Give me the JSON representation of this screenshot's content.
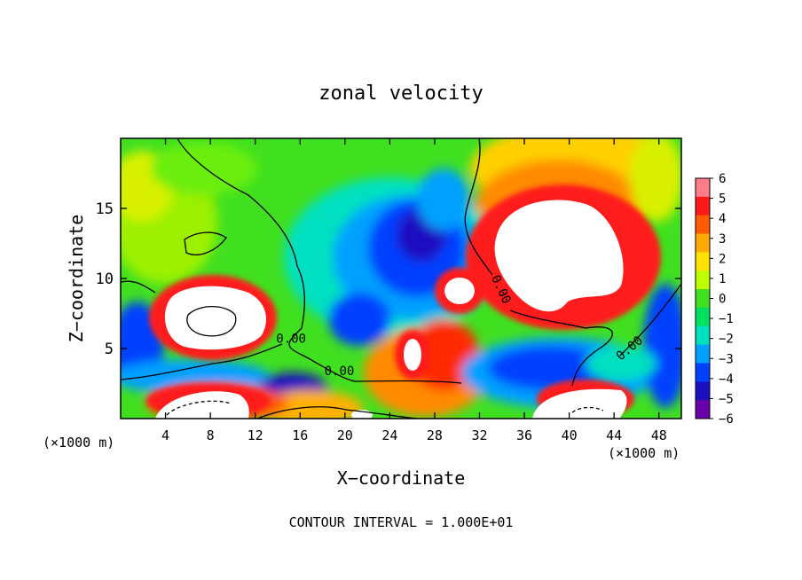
{
  "chart_data": {
    "type": "heatmap",
    "title": "zonal velocity",
    "xlabel": "X−coordinate",
    "ylabel": "Z−coordinate",
    "x_unit_left": "(×1000 m)",
    "x_unit_right": "(×1000 m)",
    "xlim": [
      0,
      50
    ],
    "ylim": [
      0,
      20
    ],
    "x_ticks": [
      4,
      8,
      12,
      16,
      20,
      24,
      28,
      32,
      36,
      40,
      44,
      48
    ],
    "y_ticks": [
      5,
      10,
      15
    ],
    "colorbar": {
      "levels": [
        6,
        5,
        4,
        3,
        2,
        1,
        0,
        -1,
        -2,
        -3,
        -4,
        -5,
        -6
      ],
      "labels": [
        "6",
        "5",
        "4",
        "3",
        "2",
        "1",
        "0",
        "−1",
        "−2",
        "−3",
        "−4",
        "−5",
        "−6"
      ],
      "colors": [
        "#ff7c88",
        "#ff1a1a",
        "#ff5a00",
        "#ffaa00",
        "#ffe000",
        "#bfff00",
        "#40e020",
        "#00e060",
        "#00e0c0",
        "#00a0ff",
        "#0040ff",
        "#1a10c0",
        "#6a00a8"
      ]
    },
    "contour_labels": [
      "0.00",
      "0.00",
      "0.00",
      "0.00"
    ],
    "regions": [
      {
        "name": "positive-jet-left",
        "x_center": 8,
        "z_center": 7.2,
        "value": 6.5
      },
      {
        "name": "positive-jet-right",
        "x_center": 40,
        "z_center": 12,
        "value": 6.5
      },
      {
        "name": "positive-cell-mid",
        "x_center": 30.5,
        "z_center": 9,
        "value": 6.5
      },
      {
        "name": "negative-core-center",
        "x_center": 25,
        "z_center": 11,
        "value": -5
      },
      {
        "name": "negative-band-low",
        "x_center": 36,
        "z_center": 3,
        "value": -5
      }
    ],
    "footer": "CONTOUR INTERVAL = 1.000E+01"
  }
}
